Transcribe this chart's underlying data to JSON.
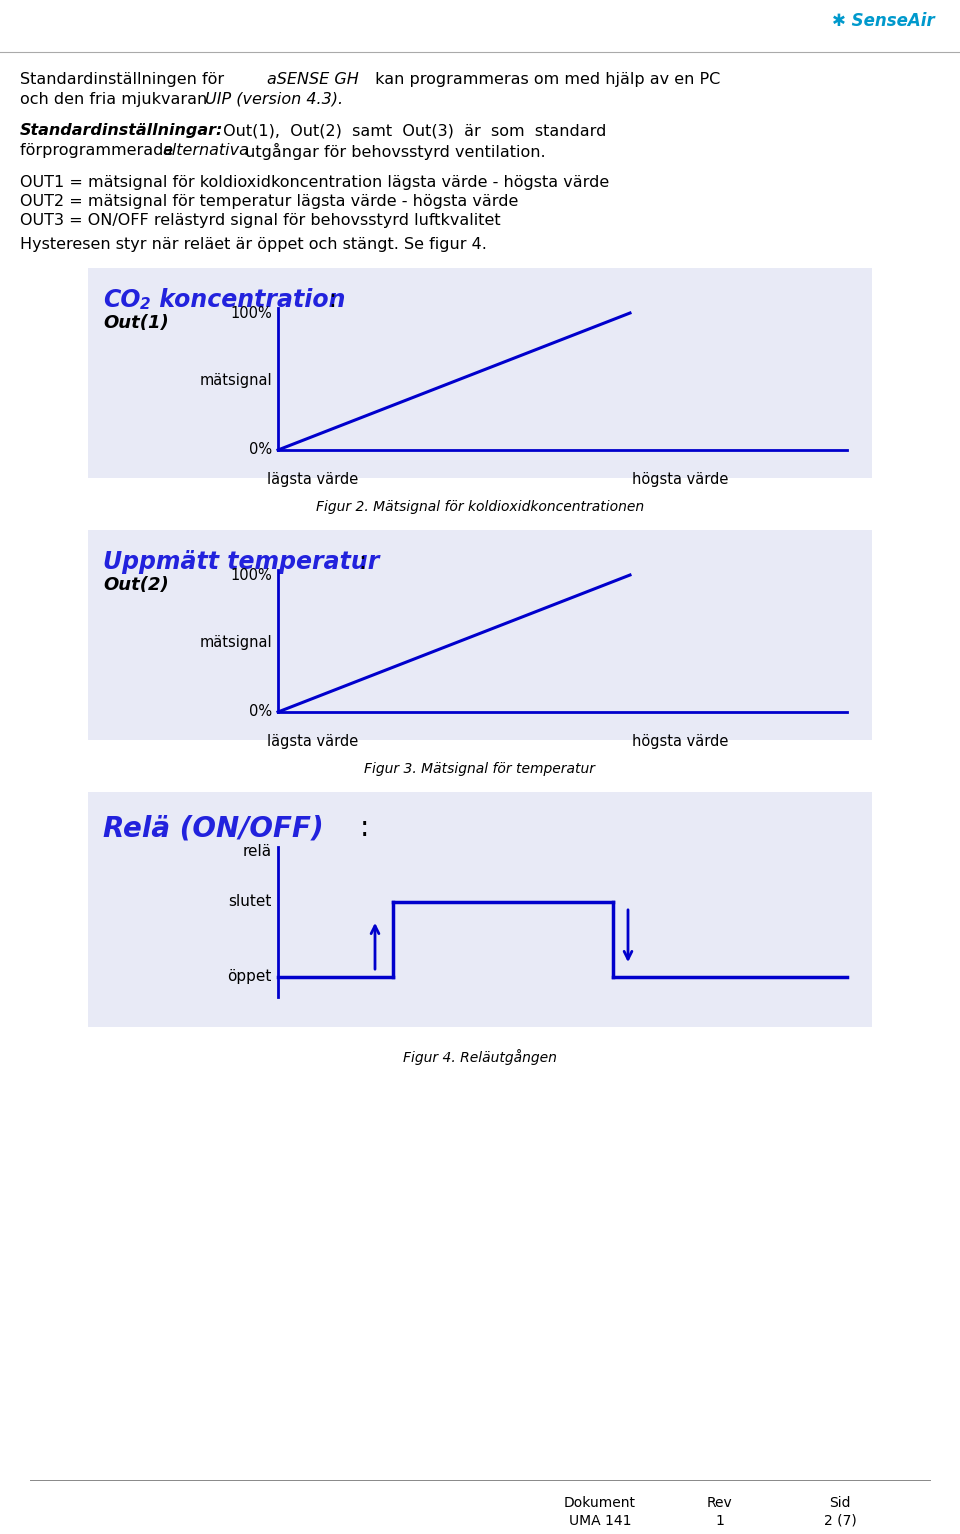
{
  "bg_color": "#FFFFFF",
  "panel_bg": "#E8EAF6",
  "blue_dark": "#0000CC",
  "blue_title": "#2222DD",
  "text_color": "#000000",
  "out1_line1": "OUT1 = mätsignal för koldioxidkoncentration lägsta värde - högsta värde",
  "out2_line2": "OUT2 = mätsignal för temperatur lägsta värde - högsta värde",
  "out3_line3": "OUT3 = ON/OFF relästyrd signal för behovsstyrd luftkvalitet",
  "hysteresis": "Hysteresen styr när reläet är öppet och stängt. Se figur 4.",
  "fig1_caption": "Figur 2. Mätsignal för koldioxidkoncentrationen",
  "fig2_caption": "Figur 3. Mätsignal för temperatur",
  "fig3_caption": "Figur 4. Reläutgången",
  "footer_doc_label": "Dokument",
  "footer_doc_val": "UMA 141",
  "footer_rev_label": "Rev",
  "footer_rev_val": "1",
  "footer_sid_label": "Sid",
  "footer_sid_val": "2 (7)"
}
